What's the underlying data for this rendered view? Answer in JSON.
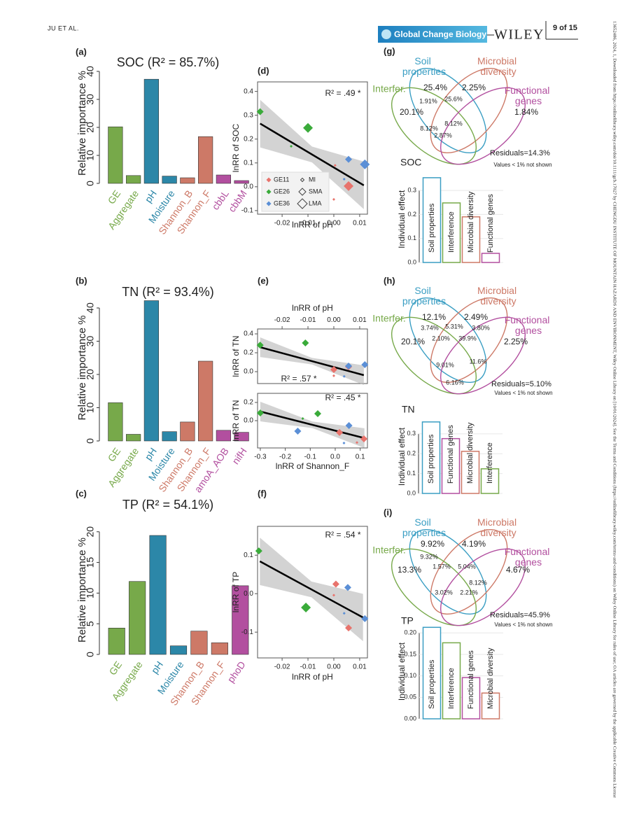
{
  "header": {
    "author": "JU ET AL.",
    "journal": "Global Change Biology",
    "publisher": "WILEY",
    "page": "9 of 15",
    "side_note": "13652486, 2024, 1, Downloaded from https://onlinelibrary.wiley.com/doi/10.1111/gcb.17027 by CHENGDU INSTITUTE OF MOUNTAIN HAZARDS AND ENVIRONMENT, Wiley Online Library on [10/01/2024]. See the Terms and Conditions (https://onlinelibrary.wiley.com/terms-and-conditions) on Wiley Online Library for rules of use; OA articles are governed by the applicable Creative Commons License"
  },
  "chart_data": [
    {
      "type": "bar",
      "panel": "(a)",
      "title": "SOC (R² = 85.7%)",
      "ylabel": "Relative importance %",
      "categories": [
        "GE",
        "Aggregate",
        "pH",
        "Moisture",
        "Shannon_B",
        "Shannon_F",
        "cbbL",
        "cbbM"
      ],
      "values": [
        20.2,
        2.8,
        37.2,
        2.6,
        2.0,
        16.7,
        3.0,
        1.0
      ],
      "colors": [
        "#77a94a",
        "#77a94a",
        "#2c87a8",
        "#2c87a8",
        "#cd7967",
        "#cd7967",
        "#b24f9f",
        "#b24f9f"
      ],
      "ylim": [
        0,
        43
      ],
      "yticks": [
        0,
        10,
        20,
        30,
        40
      ]
    },
    {
      "type": "bar",
      "panel": "(b)",
      "title": "TN (R² = 93.4%)",
      "ylabel": "Relative importance %",
      "categories": [
        "GE",
        "Aggregate",
        "pH",
        "Moisture",
        "Shannon_B",
        "Shannon_F",
        "amoA_AOB",
        "nifH"
      ],
      "values": [
        11.5,
        2.0,
        42.2,
        2.8,
        5.7,
        24.0,
        3.2,
        2.6
      ],
      "colors": [
        "#77a94a",
        "#77a94a",
        "#2c87a8",
        "#2c87a8",
        "#cd7967",
        "#cd7967",
        "#b24f9f",
        "#b24f9f"
      ],
      "ylim": [
        0,
        44
      ],
      "yticks": [
        0,
        10,
        20,
        30,
        40
      ]
    },
    {
      "type": "bar",
      "panel": "(c)",
      "title": "TP (R² = 54.1%)",
      "ylabel": "Relative importance %",
      "categories": [
        "GE",
        "Aggregate",
        "pH",
        "Moisture",
        "Shannon_B",
        "Shannon_F",
        "phoD"
      ],
      "values": [
        4.3,
        11.9,
        19.4,
        1.4,
        3.8,
        1.9,
        11.2
      ],
      "colors": [
        "#77a94a",
        "#77a94a",
        "#2c87a8",
        "#2c87a8",
        "#cd7967",
        "#cd7967",
        "#b24f9f"
      ],
      "ylim": [
        0,
        21
      ],
      "yticks": [
        0,
        5,
        10,
        15,
        20
      ]
    },
    {
      "type": "scatter",
      "panel": "(d)",
      "xlabel": "lnRR of pH",
      "ylabel": "lnRR of SOC",
      "annotation": "R² = .49 *",
      "xlim": [
        -0.0295,
        0.013
      ],
      "ylim": [
        -0.115,
        0.44
      ],
      "xticks": [
        -0.02,
        -0.01,
        {
          "value": 0,
          "label": "0.00"
        },
        0.01
      ],
      "yticks": [
        -0.1,
        {
          "value": 0,
          "label": "0.0"
        },
        0.1,
        0.2,
        0.3,
        0.4
      ],
      "series": [
        {
          "name": "GE11",
          "color": "#e8736c",
          "x": [
            0.0005,
            0.0057,
            0.0
          ],
          "values": [
            0.09,
            0.003,
            -0.053
          ],
          "sizes": [
            "MI",
            "LMA",
            "MI"
          ]
        },
        {
          "name": "GE26",
          "color": "#3aab3a",
          "x": [
            -0.0285,
            -0.01,
            -0.0165
          ],
          "values": [
            0.315,
            0.247,
            0.17
          ],
          "sizes": [
            "SMA",
            "LMA",
            "MI"
          ]
        },
        {
          "name": "GE36",
          "color": "#5b8fd6",
          "x": [
            0.0057,
            0.012,
            0.004
          ],
          "values": [
            0.115,
            0.094,
            0.032
          ],
          "sizes": [
            "SMA",
            "LMA",
            "MI"
          ]
        }
      ],
      "size_legend": [
        "MI",
        "SMA",
        "LMA"
      ],
      "fit": {
        "x": [
          -0.0285,
          0.0116
        ],
        "values": [
          0.265,
          0.006
        ]
      }
    },
    {
      "type": "scatter",
      "panel": "(e)",
      "xlabel": "lnRR of pH",
      "ylabel": "lnRR of TN",
      "annotation": "R² = .57 *",
      "xaxis": "top",
      "xlim": [
        -0.0295,
        0.013
      ],
      "ylim": [
        -0.126,
        0.452
      ],
      "xticks": [
        -0.02,
        -0.01,
        {
          "value": 0,
          "label": "0.00"
        },
        0.01
      ],
      "yticks": [
        {
          "value": 0,
          "label": "0.0"
        },
        0.2,
        0.4
      ],
      "series": [
        {
          "color": "#e8736c",
          "x": [
            0.0,
            0.0057,
            0.0
          ],
          "values": [
            0.022,
            0.052,
            -0.044
          ],
          "sizes": [
            "SMA",
            "SMA",
            "MI"
          ]
        },
        {
          "color": "#3aab3a",
          "x": [
            -0.0285,
            -0.011
          ],
          "values": [
            0.281,
            0.304
          ],
          "sizes": [
            "SMA",
            "SMA"
          ]
        },
        {
          "color": "#5b8fd6",
          "x": [
            0.0057,
            0.012,
            0.004
          ],
          "values": [
            0.059,
            0.074,
            -0.05
          ],
          "sizes": [
            "SMA",
            "SMA",
            "MI"
          ]
        }
      ],
      "fit": {
        "x": [
          -0.0285,
          0.0116
        ],
        "values": [
          0.259,
          -0.037
        ]
      }
    },
    {
      "type": "scatter",
      "xlabel": "lnRR of Shannon_F",
      "ylabel": "lnRR of TN",
      "annotation": "R² = .45 *",
      "xlim": [
        -0.311,
        0.129
      ],
      "ylim": [
        -0.3,
        0.3
      ],
      "xticks": [
        -0.3,
        -0.2,
        -0.1,
        {
          "value": 0,
          "label": "0.0"
        },
        0.1
      ],
      "yticks": [
        {
          "value": 0,
          "label": "0.0"
        },
        0.2
      ],
      "series": [
        {
          "color": "#e8736c",
          "x": [
            0.017,
            0.115,
            0.087
          ],
          "values": [
            -0.13,
            -0.2,
            -0.24
          ],
          "sizes": [
            "SMA",
            "SMA",
            "MI"
          ]
        },
        {
          "color": "#3aab3a",
          "x": [
            -0.3,
            -0.07,
            -0.13
          ],
          "values": [
            0.085,
            0.077,
            0.023
          ],
          "sizes": [
            "SMA",
            "SMA",
            "MI"
          ]
        },
        {
          "color": "#5b8fd6",
          "x": [
            -0.15,
            0.055,
            0.035
          ],
          "values": [
            -0.115,
            -0.054,
            -0.246
          ],
          "sizes": [
            "SMA",
            "SMA",
            "MI"
          ]
        }
      ],
      "fit": {
        "x": [
          -0.3,
          0.117
        ],
        "values": [
          0.1,
          -0.192
        ]
      }
    },
    {
      "type": "scatter",
      "panel": "(f)",
      "xlabel": "lnRR of pH",
      "ylabel": "lnRR of TP",
      "annotation": "R² = .54 *",
      "xlim": [
        -0.0295,
        0.013
      ],
      "ylim": [
        -0.167,
        0.175
      ],
      "xticks": [
        -0.02,
        -0.01,
        {
          "value": 0,
          "label": "0.00"
        },
        0.01
      ],
      "yticks": [
        -0.1,
        {
          "value": 0,
          "label": "0.0"
        },
        0.1
      ],
      "series": [
        {
          "color": "#e8736c",
          "x": [
            0.0008,
            0.0,
            0.0057
          ],
          "values": [
            0.025,
            -0.004,
            -0.089
          ],
          "sizes": [
            "SMA",
            "MI",
            "SMA"
          ]
        },
        {
          "color": "#3aab3a",
          "x": [
            -0.029,
            -0.0108
          ],
          "values": [
            0.111,
            -0.036
          ],
          "sizes": [
            "SMA",
            "LMA"
          ]
        },
        {
          "color": "#5b8fd6",
          "x": [
            0.0054,
            0.012,
            0.004
          ],
          "values": [
            0.016,
            -0.065,
            -0.051
          ],
          "sizes": [
            "SMA",
            "SMA",
            "MI"
          ]
        }
      ],
      "fit": {
        "x": [
          -0.0286,
          0.0113
        ],
        "values": [
          0.084,
          -0.062
        ]
      }
    },
    {
      "type": "venn",
      "panel": "(g)",
      "sets": [
        {
          "name": "Soil properties",
          "color": "#3a9ec3"
        },
        {
          "name": "Microbial diversity",
          "color": "#cd7967"
        },
        {
          "name": "Interfer.",
          "color": "#77a94a"
        },
        {
          "name": "Functional genes",
          "color": "#b24f9f"
        }
      ],
      "values": [
        25.4,
        2.25,
        1.91,
        25.6,
        20.1,
        1.84,
        8.12,
        8.12,
        2.87
      ],
      "value_labels": [
        "25.4%",
        "2.25%",
        "1.91%",
        "25.6%",
        "20.1%",
        "1.84%",
        "8.12%",
        "8.12%",
        "2.87%"
      ],
      "residuals": "Residuals=14.3%",
      "note": "Values < 1% not shown"
    },
    {
      "type": "bar",
      "style": "outline",
      "title": "SOC",
      "ylabel": "Individual effect",
      "categories": [
        "Soil properties",
        "Interference",
        "Microbial diversity",
        "Functional genes"
      ],
      "values": [
        0.353,
        0.248,
        0.19,
        0.038
      ],
      "colors": [
        "#3a9ec3",
        "#77a94a",
        "#cd7967",
        "#b24f9f"
      ],
      "ylim": [
        0,
        0.36
      ],
      "yticks": [
        {
          "value": 0,
          "label": "0.0"
        },
        0.1,
        0.2,
        0.3
      ]
    },
    {
      "type": "venn",
      "panel": "(h)",
      "sets": [
        {
          "name": "Soil properties",
          "color": "#3a9ec3"
        },
        {
          "name": "Microbial diversity",
          "color": "#cd7967"
        },
        {
          "name": "Interfer.",
          "color": "#77a94a"
        },
        {
          "name": "Functional genes",
          "color": "#b24f9f"
        }
      ],
      "values": [
        12.1,
        2.49,
        3.74,
        5.31,
        3.8,
        20.1,
        2.1,
        39.9,
        2.25,
        11.6,
        9.01,
        6.16
      ],
      "value_labels": [
        "12.1%",
        "2.49%",
        "3.74%",
        "5.31%",
        "3.80%",
        "20.1%",
        "2.10%",
        "39.9%",
        "2.25%",
        "11.6%",
        "9.01%",
        "6.16%"
      ],
      "residuals": "Residuals=5.10%",
      "note": "Values < 1% not shown"
    },
    {
      "type": "bar",
      "style": "outline",
      "title": "TN",
      "ylabel": "Individual effect",
      "categories": [
        "Soil properties",
        "Functional genes",
        "Microbial diversity",
        "Interference"
      ],
      "values": [
        0.36,
        0.276,
        0.212,
        0.124
      ],
      "colors": [
        "#3a9ec3",
        "#b24f9f",
        "#cd7967",
        "#77a94a"
      ],
      "ylim": [
        0,
        0.37
      ],
      "yticks": [
        {
          "value": 0,
          "label": "0.0"
        },
        0.1,
        0.2,
        0.3
      ]
    },
    {
      "type": "venn",
      "panel": "(i)",
      "sets": [
        {
          "name": "Soil properties",
          "color": "#3a9ec3"
        },
        {
          "name": "Microbial diversity",
          "color": "#cd7967"
        },
        {
          "name": "Interfer.",
          "color": "#77a94a"
        },
        {
          "name": "Functional genes",
          "color": "#b24f9f"
        }
      ],
      "values": [
        9.92,
        4.19,
        9.32,
        1.57,
        5.04,
        13.3,
        4.67,
        8.12,
        3.02,
        2.21
      ],
      "value_labels": [
        "9.92%",
        "4.19%",
        "9.32%",
        "1.57%",
        "5.04%",
        "13.3%",
        "4.67%",
        "8.12%",
        "3.02%",
        "2.21%"
      ],
      "residuals": "Residuals=45.9%",
      "note": "Values < 1% not shown"
    },
    {
      "type": "bar",
      "style": "outline",
      "title": "TP",
      "ylabel": "Individual effect",
      "categories": [
        "Soil properties",
        "Interference",
        "Functional genes",
        "Microbial diversity"
      ],
      "values": [
        0.213,
        0.177,
        0.096,
        0.06
      ],
      "colors": [
        "#3a9ec3",
        "#77a94a",
        "#b24f9f",
        "#cd7967"
      ],
      "ylim": [
        0,
        0.22
      ],
      "yticks": [
        {
          "value": 0,
          "label": "0.00"
        },
        0.05,
        {
          "value": 0.1,
          "label": "0.10"
        },
        0.15,
        {
          "value": 0.2,
          "label": "0.20"
        }
      ]
    }
  ]
}
